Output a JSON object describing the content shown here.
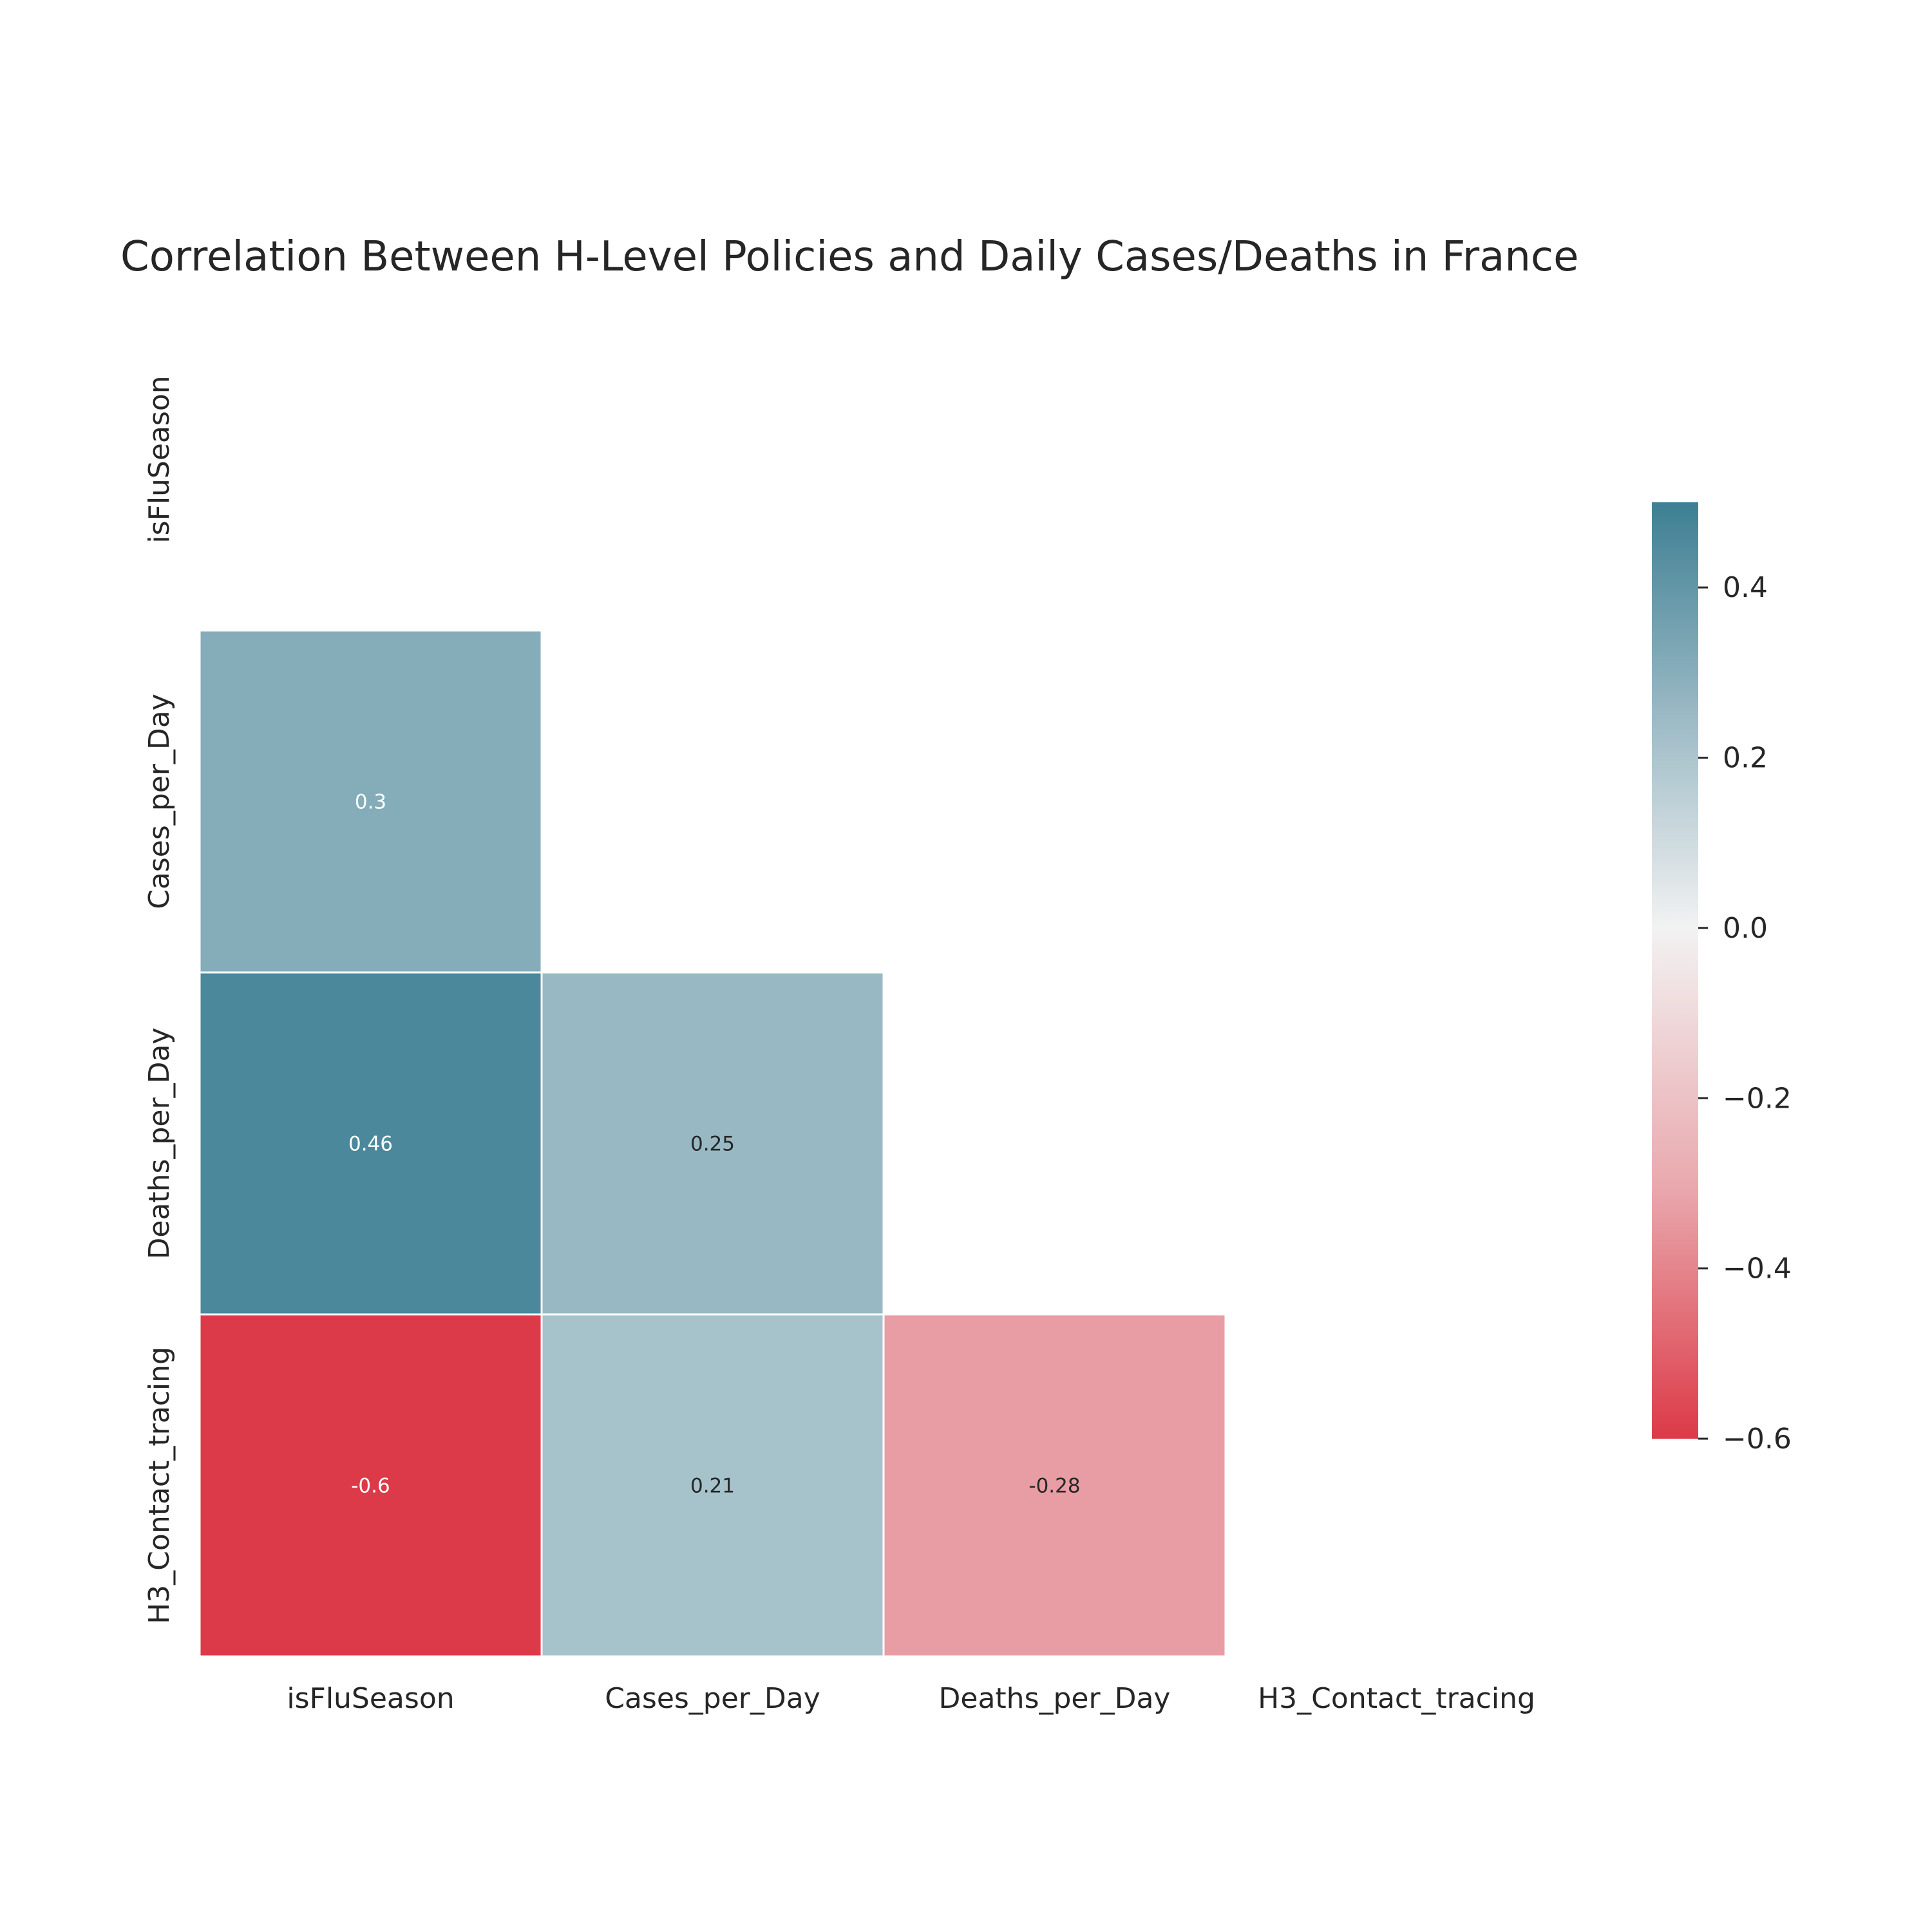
{
  "chart_data": {
    "type": "heatmap",
    "title": "Correlation Between H-Level Policies and Daily Cases/Deaths in France",
    "variables": [
      "isFluSeason",
      "Cases_per_Day",
      "Deaths_per_Day",
      "H3_Contact_tracing"
    ],
    "mask": "upper-triangle-including-diagonal",
    "cells": [
      {
        "row": "Cases_per_Day",
        "col": "isFluSeason",
        "value": 0.3,
        "label": "0.3"
      },
      {
        "row": "Deaths_per_Day",
        "col": "isFluSeason",
        "value": 0.46,
        "label": "0.46"
      },
      {
        "row": "Deaths_per_Day",
        "col": "Cases_per_Day",
        "value": 0.25,
        "label": "0.25"
      },
      {
        "row": "H3_Contact_tracing",
        "col": "isFluSeason",
        "value": -0.6,
        "label": "-0.6"
      },
      {
        "row": "H3_Contact_tracing",
        "col": "Cases_per_Day",
        "value": 0.21,
        "label": "0.21"
      },
      {
        "row": "H3_Contact_tracing",
        "col": "Deaths_per_Day",
        "value": -0.28,
        "label": "-0.28"
      }
    ],
    "colorbar": {
      "range": [
        -0.6,
        0.5
      ],
      "ticks": [
        0.4,
        0.2,
        0.0,
        -0.2,
        -0.4,
        -0.6
      ],
      "tick_labels": [
        "0.4",
        "0.2",
        "0.0",
        "−0.2",
        "−0.4",
        "−0.6"
      ],
      "low_color": "#dc3a48",
      "mid_color": "#f2f2f2",
      "high_color": "#3d7f93"
    },
    "grid": false
  }
}
